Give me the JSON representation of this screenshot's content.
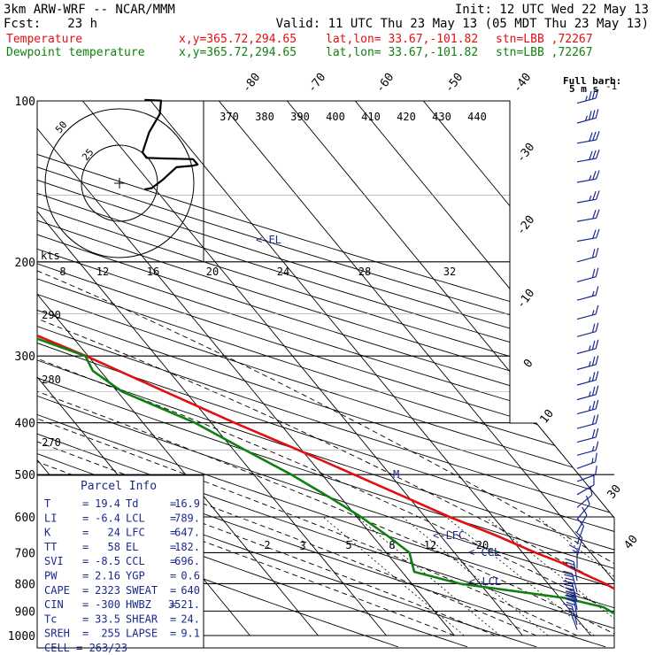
{
  "header": {
    "model": "3km ARW-WRF -- NCAR/MMM",
    "init": "Init: 12 UTC Wed 22 May 13",
    "fcst_label": "Fcst:",
    "fcst_value": "23 h",
    "valid": "Valid: 11 UTC Thu 23 May 13 (05 MDT Thu 23 May 13)",
    "temp_line": {
      "name": "Temperature",
      "xy": "x,y=365.72,294.65",
      "latlon": "lat,lon= 33.67,-101.82",
      "stn": "stn=LBB ,72267"
    },
    "dew_line": {
      "name": "Dewpoint temperature",
      "xy": "x,y=365.72,294.65",
      "latlon": "lat,lon= 33.67,-101.82",
      "stn": "stn=LBB ,72267"
    }
  },
  "colors": {
    "temperature": "#e01010",
    "dewpoint": "#108010",
    "text_blue": "#1a2a8c",
    "grid": "#000000"
  },
  "barb_legend": {
    "title": "Full barb:",
    "value": "5 m s"
  },
  "chart_data": {
    "type": "skew-t log-p",
    "y_axis": "pressure (hPa), logarithmic",
    "pressure_ticks": [
      "100",
      "200",
      "300",
      "400",
      "500",
      "600",
      "700",
      "800",
      "900",
      "1000"
    ],
    "isotherm_labels": [
      "-80",
      "-70",
      "-60",
      "-50",
      "-40",
      "-30",
      "-20",
      "-10",
      "0",
      "10",
      "20",
      "30",
      "40"
    ],
    "theta_labels": [
      "370",
      "380",
      "390",
      "400",
      "410",
      "420",
      "430",
      "440"
    ],
    "theta_low_labels": [
      "290",
      "280",
      "270"
    ],
    "mixing_ratio_labels": [
      "2",
      "3",
      "5",
      "8",
      "12",
      "20"
    ],
    "hodograph": {
      "speed_axis_title": "kts",
      "speed_labels": [
        "8",
        "12",
        "16",
        "20",
        "24",
        "28",
        "32"
      ],
      "ring_labels": [
        "25",
        "50"
      ]
    },
    "level_markers": [
      "<-EL",
      "<-LFC",
      "<-CCL",
      "<-LCL",
      "M"
    ],
    "series": [
      {
        "name": "Temperature",
        "points": [
          [
            980,
            19.4
          ],
          [
            940,
            17.5
          ],
          [
            910,
            16.8
          ],
          [
            880,
            18.0
          ],
          [
            850,
            19.5
          ],
          [
            820,
            19.2
          ],
          [
            800,
            18.4
          ],
          [
            770,
            16.6
          ],
          [
            730,
            14.4
          ],
          [
            700,
            11.9
          ],
          [
            650,
            8.2
          ],
          [
            600,
            3.6
          ],
          [
            550,
            -0.6
          ],
          [
            500,
            -5.3
          ],
          [
            450,
            -10.5
          ],
          [
            400,
            -16.6
          ],
          [
            350,
            -23.0
          ],
          [
            300,
            -30.3
          ],
          [
            260,
            -38.0
          ],
          [
            240,
            -43.6
          ],
          [
            210,
            -51.8
          ],
          [
            195,
            -54.5
          ],
          [
            180,
            -55.6
          ],
          [
            170,
            -55.0
          ],
          [
            150,
            -58.6
          ],
          [
            130,
            -60.6
          ],
          [
            115,
            -61.4
          ],
          [
            103,
            -61.4
          ]
        ]
      },
      {
        "name": "Dewpoint temperature",
        "points": [
          [
            980,
            16.9
          ],
          [
            940,
            16.5
          ],
          [
            910,
            16.1
          ],
          [
            885,
            15.3
          ],
          [
            850,
            10.6
          ],
          [
            800,
            -2.9
          ],
          [
            760,
            -8.2
          ],
          [
            700,
            -6.6
          ],
          [
            650,
            -7.8
          ],
          [
            600,
            -9.4
          ],
          [
            550,
            -11.7
          ],
          [
            500,
            -14.5
          ],
          [
            450,
            -18.3
          ],
          [
            400,
            -22.4
          ],
          [
            350,
            -29.3
          ],
          [
            320,
            -31.1
          ],
          [
            300,
            -30.4
          ],
          [
            265,
            -38.7
          ],
          [
            240,
            -47.9
          ],
          [
            210,
            -61.0
          ],
          [
            180,
            -60.8
          ],
          [
            160,
            -59.3
          ],
          [
            140,
            -61.4
          ],
          [
            128,
            -63.4
          ],
          [
            113,
            -64.0
          ],
          [
            100,
            -64.8
          ]
        ]
      }
    ],
    "winds_kts": [
      [
        101,
        255,
        35
      ],
      [
        110,
        255,
        35
      ],
      [
        120,
        260,
        30
      ],
      [
        130,
        260,
        30
      ],
      [
        142,
        260,
        25
      ],
      [
        155,
        260,
        25
      ],
      [
        168,
        260,
        20
      ],
      [
        183,
        260,
        20
      ],
      [
        200,
        255,
        20
      ],
      [
        218,
        255,
        20
      ],
      [
        236,
        255,
        15
      ],
      [
        256,
        255,
        15
      ],
      [
        276,
        255,
        20
      ],
      [
        297,
        255,
        25
      ],
      [
        318,
        255,
        25
      ],
      [
        340,
        255,
        25
      ],
      [
        362,
        255,
        25
      ],
      [
        385,
        255,
        25
      ],
      [
        410,
        255,
        20
      ],
      [
        435,
        255,
        20
      ],
      [
        460,
        255,
        15
      ],
      [
        487,
        250,
        15
      ],
      [
        515,
        250,
        10
      ],
      [
        545,
        240,
        10
      ],
      [
        576,
        230,
        10
      ],
      [
        606,
        220,
        10
      ],
      [
        640,
        210,
        10
      ],
      [
        675,
        200,
        10
      ],
      [
        712,
        195,
        10
      ],
      [
        750,
        180,
        15
      ],
      [
        790,
        170,
        25
      ],
      [
        830,
        165,
        35
      ],
      [
        865,
        165,
        45
      ],
      [
        895,
        170,
        40
      ],
      [
        925,
        170,
        30
      ],
      [
        955,
        165,
        15
      ],
      [
        975,
        160,
        5
      ]
    ],
    "hodograph_trace": [
      [
        0.15,
        0.0
      ],
      [
        0.26,
        0.02
      ],
      [
        0.42,
        0.14
      ],
      [
        0.63,
        0.33
      ],
      [
        0.86,
        0.35
      ],
      [
        0.95,
        0.37
      ],
      [
        0.88,
        0.45
      ],
      [
        0.42,
        0.46
      ],
      [
        0.18,
        0.47
      ],
      [
        0.12,
        0.55
      ],
      [
        0.22,
        0.85
      ],
      [
        0.38,
        1.12
      ],
      [
        0.4,
        1.32
      ],
      [
        0.15,
        1.33
      ]
    ],
    "parcel_info": {
      "title": "Parcel Info",
      "rows": [
        {
          "k1": "T",
          "v1": "19.4",
          "k2": "Td",
          "v2": "16.9"
        },
        {
          "k1": "LI",
          "v1": "-6.4",
          "k2": "LCL",
          "v2": "789."
        },
        {
          "k1": "K",
          "v1": "24",
          "k2": "LFC",
          "v2": "647."
        },
        {
          "k1": "TT",
          "v1": "58",
          "k2": "EL",
          "v2": "182."
        },
        {
          "k1": "SVI",
          "v1": "-8.5",
          "k2": "CCL",
          "v2": "696."
        },
        {
          "k1": "PW",
          "v1": "2.16",
          "k2": "YGP",
          "v2": "0.6"
        },
        {
          "k1": "CAPE",
          "v1": "2323",
          "k2": "SWEAT",
          "v2": "640"
        },
        {
          "k1": "CIN",
          "v1": "-300",
          "k2": "HWBZ",
          "v2": "3521."
        },
        {
          "k1": "Tc",
          "v1": "33.5",
          "k2": "SHEAR",
          "v2": "24."
        },
        {
          "k1": "SREH",
          "v1": "255",
          "k2": "LAPSE",
          "v2": "9.1"
        }
      ],
      "cell": "CELL = 263/23"
    }
  }
}
